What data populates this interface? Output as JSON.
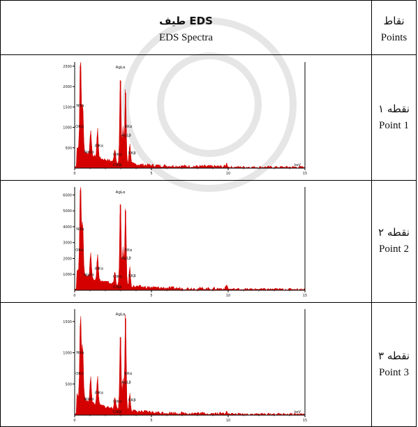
{
  "header": {
    "spectra_fa": "طیف EDS",
    "spectra_en": "EDS Spectra",
    "points_fa": "نقاط",
    "points_en": "Points"
  },
  "rows": [
    {
      "label_fa": "نقطه ۱",
      "label_en": "Point 1",
      "chart_data": {
        "type": "area",
        "xlabel": "keV",
        "xlim": [
          0,
          15
        ],
        "ylim": [
          0,
          2600
        ],
        "x_ticks": [
          "0",
          "5",
          "10",
          "15"
        ],
        "y_ticks": [
          "500",
          "1000",
          "1500",
          "2000",
          "2500"
        ],
        "annotations": [
          "AgLα",
          "NKα",
          "OKα",
          "KKα",
          "AgLβ",
          "AlKα",
          "NaKα",
          "ClKα",
          "KKβ",
          "ClKβ"
        ],
        "peaks": [
          [
            0.38,
            2500
          ],
          [
            0.52,
            1200
          ],
          [
            1.04,
            650
          ],
          [
            1.49,
            720
          ],
          [
            2.62,
            350
          ],
          [
            2.98,
            2150
          ],
          [
            3.15,
            900
          ],
          [
            3.31,
            1850
          ],
          [
            3.59,
            520
          ],
          [
            9.9,
            80
          ]
        ]
      }
    },
    {
      "label_fa": "نقطه ۲",
      "label_en": "Point 2",
      "chart_data": {
        "type": "area",
        "xlabel": "",
        "xlim": [
          0,
          15
        ],
        "ylim": [
          0,
          6500
        ],
        "x_ticks": [
          "0",
          "5",
          "10",
          "15"
        ],
        "y_ticks": [
          "1000",
          "2000",
          "3000",
          "4000",
          "5000",
          "6000"
        ],
        "annotations": [
          "AgLα",
          "NKα",
          "OKα",
          "KKα",
          "AgLβ",
          "AlKα",
          "NaKα",
          "ClKα",
          "KKβ",
          "ClKβ"
        ],
        "peaks": [
          [
            0.38,
            6300
          ],
          [
            0.52,
            3300
          ],
          [
            1.04,
            1600
          ],
          [
            1.49,
            1700
          ],
          [
            2.62,
            800
          ],
          [
            2.98,
            5400
          ],
          [
            3.15,
            2300
          ],
          [
            3.31,
            5000
          ],
          [
            3.59,
            1200
          ],
          [
            9.9,
            250
          ]
        ]
      }
    },
    {
      "label_fa": "نقطه ۳",
      "label_en": "Point 3",
      "chart_data": {
        "type": "area",
        "xlabel": "keV",
        "xlim": [
          0,
          15
        ],
        "ylim": [
          0,
          1700
        ],
        "x_ticks": [
          "0",
          "5",
          "10",
          "15"
        ],
        "y_ticks": [
          "500",
          "1000",
          "1500"
        ],
        "annotations": [
          "AgLα",
          "NKα",
          "OKα",
          "KKα",
          "AgLβ",
          "AlKα",
          "NaKα",
          "ClKα",
          "KKβ",
          "ClKβ"
        ],
        "peaks": [
          [
            0.38,
            1400
          ],
          [
            0.52,
            900
          ],
          [
            1.04,
            400
          ],
          [
            1.49,
            450
          ],
          [
            2.62,
            220
          ],
          [
            2.98,
            1250
          ],
          [
            3.15,
            500
          ],
          [
            3.31,
            1550
          ],
          [
            3.59,
            300
          ],
          [
            9.9,
            60
          ]
        ]
      }
    }
  ],
  "colors": {
    "spectrum": "#d40000",
    "axis": "#000000"
  }
}
